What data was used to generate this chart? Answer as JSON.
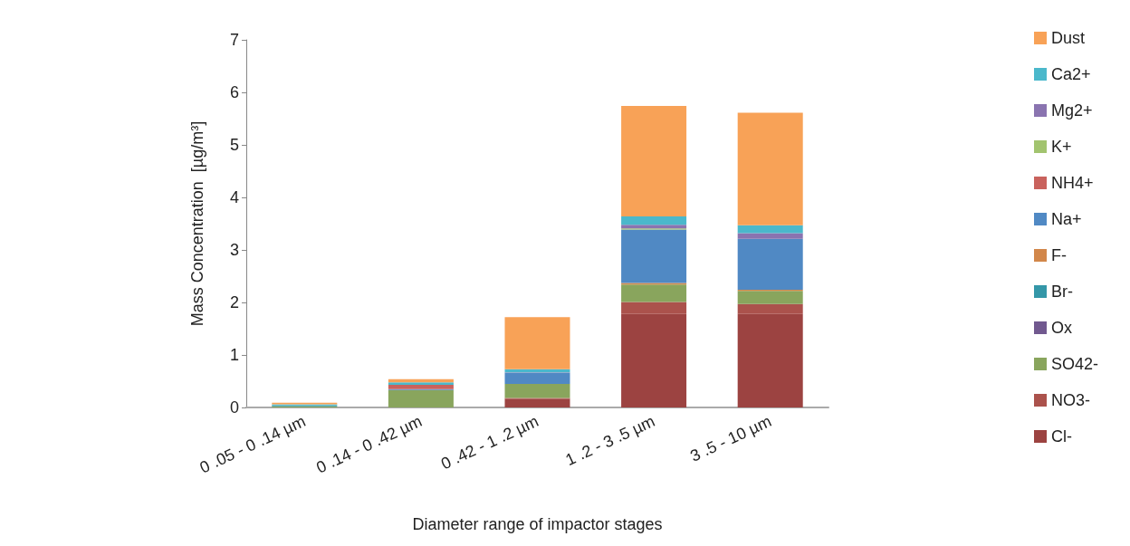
{
  "chart_data": {
    "type": "bar",
    "stacked": true,
    "xlabel": "Diameter range of impactor stages",
    "ylabel": "Mass Concentration  [µg/m³]",
    "categories": [
      "0 .05 - 0 .14 µm",
      "0 .14 - 0 .42 µm",
      "0 .42 - 1 .2 µm",
      "1 .2 - 3 .5 µm",
      "3 .5 - 10 µm"
    ],
    "ylim": [
      0,
      7
    ],
    "yticks": [
      0,
      1,
      2,
      3,
      4,
      5,
      6,
      7
    ],
    "grid": false,
    "legend": "right",
    "series": [
      {
        "name": "Cl-",
        "color": "#9c4341",
        "values": [
          0,
          0,
          0.16,
          1.78,
          1.78
        ]
      },
      {
        "name": "NO3-",
        "color": "#ab524c",
        "values": [
          0,
          0,
          0.02,
          0.23,
          0.19
        ]
      },
      {
        "name": "SO42-",
        "color": "#89a55d",
        "values": [
          0.02,
          0.33,
          0.27,
          0.33,
          0.25
        ]
      },
      {
        "name": "Ox",
        "color": "#71598f",
        "values": [
          0,
          0,
          0,
          null,
          null
        ]
      },
      {
        "name": "Br-",
        "color": "#3497a8",
        "values": [
          0.02,
          0,
          0,
          0,
          0
        ]
      },
      {
        "name": "F-",
        "color": "#d2874a",
        "values": [
          0,
          0,
          0,
          0.03,
          0.02
        ]
      },
      {
        "name": "Na+",
        "color": "#5089c4",
        "values": [
          0,
          0.02,
          0.21,
          1.02,
          0.97
        ]
      },
      {
        "name": "NH4+",
        "color": "#c9625d",
        "values": [
          0,
          0.08,
          0,
          0,
          0
        ]
      },
      {
        "name": "K+",
        "color": "#a2c46f",
        "values": [
          0,
          0,
          0,
          0.02,
          null
        ]
      },
      {
        "name": "Mg2+",
        "color": "#8a74b0",
        "values": [
          0,
          0,
          0.01,
          0.07,
          0.11
        ]
      },
      {
        "name": "Ca2+",
        "color": "#4bb8cb",
        "values": [
          0.02,
          0.05,
          0.06,
          0.16,
          0.15
        ]
      },
      {
        "name": "Dust",
        "color": "#f8a257",
        "values": [
          0.03,
          0.06,
          0.99,
          2.1,
          2.14
        ]
      }
    ]
  }
}
